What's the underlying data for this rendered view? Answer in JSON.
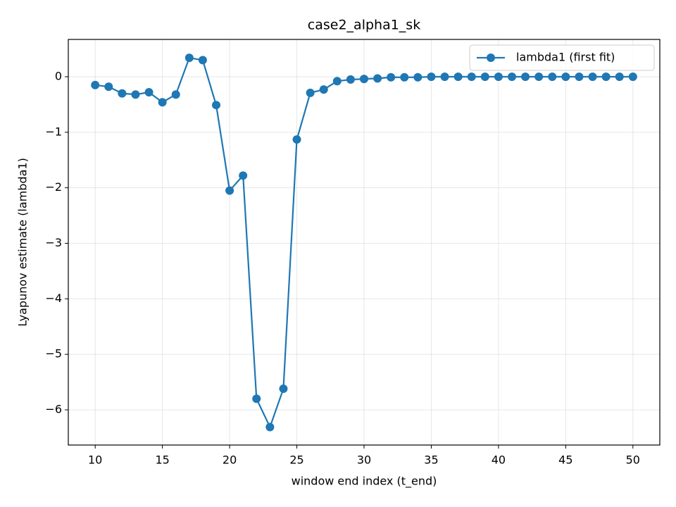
{
  "chart_data": {
    "type": "line",
    "title": "case2_alpha1_sk",
    "xlabel": "window end index (t_end)",
    "ylabel": "Lyapunov estimate (lambda1)",
    "x": [
      10,
      11,
      12,
      13,
      14,
      15,
      16,
      17,
      18,
      19,
      20,
      21,
      22,
      23,
      24,
      25,
      26,
      27,
      28,
      29,
      30,
      31,
      32,
      33,
      34,
      35,
      36,
      37,
      38,
      39,
      40,
      41,
      42,
      43,
      44,
      45,
      46,
      47,
      48,
      49,
      50
    ],
    "series": [
      {
        "name": "lambda1 (first fit)",
        "color": "#1f77b4",
        "values": [
          -0.15,
          -0.18,
          -0.3,
          -0.32,
          -0.28,
          -0.46,
          -0.32,
          0.34,
          0.3,
          -0.51,
          -2.05,
          -1.78,
          -5.8,
          -6.31,
          -5.62,
          -1.13,
          -0.29,
          -0.23,
          -0.08,
          -0.05,
          -0.04,
          -0.03,
          -0.01,
          -0.01,
          -0.01,
          0,
          0,
          0,
          0,
          0,
          0,
          0,
          0,
          0,
          0,
          0,
          0,
          0,
          0,
          0,
          0
        ]
      }
    ],
    "xlim": [
      8,
      52
    ],
    "ylim": [
      -6.634,
      0.672
    ],
    "xticks": [
      10,
      15,
      20,
      25,
      30,
      35,
      40,
      45,
      50
    ],
    "yticks": [
      {
        "value": -6,
        "label": "−6"
      },
      {
        "value": -5,
        "label": "−5"
      },
      {
        "value": -4,
        "label": "−4"
      },
      {
        "value": -3,
        "label": "−3"
      },
      {
        "value": -2,
        "label": "−2"
      },
      {
        "value": -1,
        "label": "−1"
      },
      0
    ],
    "grid": true,
    "legend": "upper right"
  }
}
